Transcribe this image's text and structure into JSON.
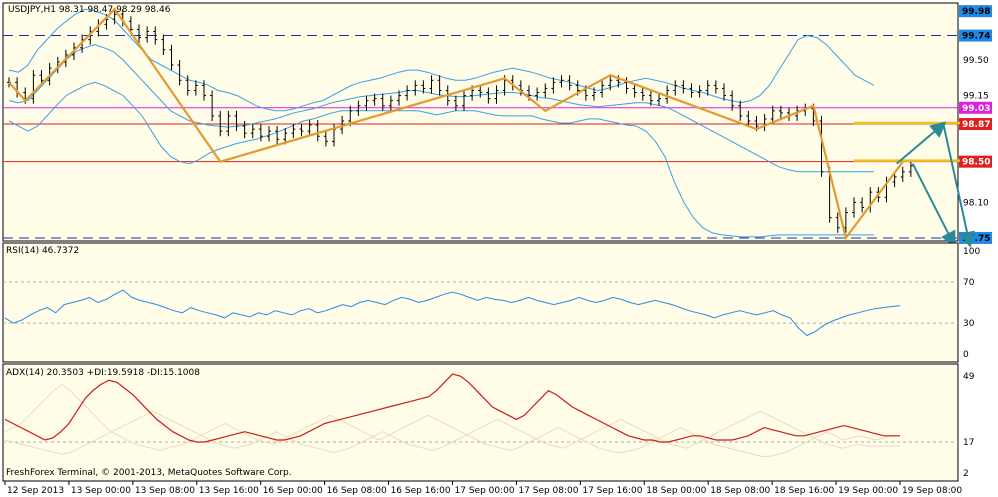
{
  "colors": {
    "background": "#fffde8",
    "frame": "#000000",
    "bollinger": "#3aa0e6",
    "zigzag": "#e39a2e",
    "price_bars": "#000000",
    "support_dash": "#1e2ea8",
    "resistance": "#e02020",
    "magenta": "#e020e0",
    "forecast_arrow": "#2a8a9a",
    "target_zone": "#f0c020",
    "rsi": "#2a8ae6",
    "adx": "#cc1a1a",
    "di_lines": "#e8dcc0"
  },
  "chart_data": [
    {
      "type": "line",
      "panel": "price",
      "title": "USDJPY,H1  98.31 98.47 98.29 98.46",
      "y_ticks": [
        "99.98",
        "99.74",
        "99.50",
        "99.15",
        "99.03",
        "98.87",
        "98.50",
        "98.10",
        "97.75"
      ],
      "ylim": [
        97.72,
        100.06
      ],
      "x_ticks": [
        "12 Sep 2013",
        "13 Sep 00:00",
        "13 Sep 08:00",
        "13 Sep 16:00",
        "16 Sep 00:00",
        "16 Sep 08:00",
        "16 Sep 16:00",
        "17 Sep 00:00",
        "17 Sep 08:00",
        "17 Sep 16:00",
        "18 Sep 00:00",
        "18 Sep 08:00",
        "18 Sep 16:00",
        "19 Sep 00:00",
        "19 Sep 08:00"
      ],
      "levels": [
        {
          "value": 99.98,
          "label": "99.98",
          "style": "axis-tag"
        },
        {
          "value": 99.74,
          "label": "99.74",
          "style": "dashed"
        },
        {
          "value": 99.03,
          "label": "99.03",
          "style": "magenta"
        },
        {
          "value": 98.87,
          "label": "98.87",
          "style": "red"
        },
        {
          "value": 98.5,
          "label": "98.50",
          "style": "red"
        },
        {
          "value": 97.75,
          "label": "97.75",
          "style": "dashed"
        }
      ],
      "zigzag": [
        [
          0,
          99.28
        ],
        [
          2,
          99.1
        ],
        [
          13,
          100.0
        ],
        [
          26,
          98.5
        ],
        [
          61,
          99.32
        ],
        [
          66,
          99.0
        ],
        [
          74,
          99.35
        ],
        [
          92,
          98.82
        ],
        [
          99,
          99.05
        ],
        [
          103,
          97.75
        ],
        [
          110,
          98.5
        ]
      ],
      "forecast": {
        "start": [
          110,
          98.5
        ],
        "peak": [
          115,
          98.87
        ],
        "end": [
          117,
          97.75
        ]
      },
      "bars_close": [
        99.28,
        99.18,
        99.12,
        99.35,
        99.3,
        99.42,
        99.48,
        99.55,
        99.62,
        99.7,
        99.78,
        99.85,
        99.9,
        99.95,
        99.88,
        99.8,
        99.72,
        99.78,
        99.7,
        99.6,
        99.45,
        99.3,
        99.2,
        99.25,
        99.15,
        98.95,
        98.8,
        98.95,
        98.85,
        98.78,
        98.82,
        98.75,
        98.8,
        98.72,
        98.78,
        98.82,
        98.8,
        98.86,
        98.75,
        98.7,
        98.82,
        98.9,
        99.0,
        99.05,
        99.1,
        99.12,
        99.05,
        99.1,
        99.15,
        99.2,
        99.25,
        99.22,
        99.3,
        99.2,
        99.1,
        99.05,
        99.15,
        99.2,
        99.18,
        99.12,
        99.2,
        99.3,
        99.25,
        99.2,
        99.15,
        99.18,
        99.22,
        99.28,
        99.3,
        99.25,
        99.2,
        99.15,
        99.18,
        99.25,
        99.3,
        99.28,
        99.22,
        99.18,
        99.15,
        99.1,
        99.12,
        99.2,
        99.25,
        99.22,
        99.18,
        99.2,
        99.25,
        99.22,
        99.15,
        99.05,
        98.95,
        98.9,
        98.85,
        98.92,
        99.0,
        98.98,
        98.95,
        99.0,
        99.02,
        98.9,
        98.4,
        97.95,
        97.85,
        98.0,
        98.1,
        98.05,
        98.2,
        98.15,
        98.3,
        98.35,
        98.4,
        98.46
      ],
      "bb_upper": [
        99.4,
        99.38,
        99.45,
        99.6,
        99.7,
        99.8,
        99.88,
        99.95,
        100.0,
        99.98,
        99.95,
        99.9,
        99.8,
        99.7,
        99.6,
        99.5,
        99.45,
        99.4,
        99.35,
        99.3,
        99.28,
        99.25,
        99.2,
        99.18,
        99.15,
        99.1,
        99.05,
        99.02,
        99.0,
        99.0,
        99.02,
        99.05,
        99.08,
        99.1,
        99.15,
        99.2,
        99.25,
        99.28,
        99.3,
        99.32,
        99.35,
        99.38,
        99.4,
        99.4,
        99.38,
        99.35,
        99.32,
        99.3,
        99.3,
        99.32,
        99.35,
        99.38,
        99.4,
        99.42,
        99.4,
        99.38,
        99.35,
        99.32,
        99.3,
        99.28,
        99.25,
        99.22,
        99.2,
        99.22,
        99.25,
        99.28,
        99.3,
        99.32,
        99.3,
        99.28,
        99.25,
        99.22,
        99.2,
        99.18,
        99.15,
        99.12,
        99.1,
        99.08,
        99.1,
        99.15,
        99.25,
        99.4,
        99.55,
        99.7,
        99.74,
        99.72,
        99.65,
        99.55,
        99.45,
        99.35,
        99.3,
        99.25
      ],
      "bb_middle": [
        99.1,
        99.08,
        99.1,
        99.2,
        99.3,
        99.4,
        99.5,
        99.58,
        99.62,
        99.65,
        99.62,
        99.58,
        99.5,
        99.4,
        99.3,
        99.2,
        99.1,
        99.0,
        98.95,
        98.9,
        98.88,
        98.86,
        98.85,
        98.84,
        98.85,
        98.86,
        98.88,
        98.9,
        98.92,
        98.95,
        98.98,
        99.0,
        99.02,
        99.05,
        99.08,
        99.1,
        99.12,
        99.14,
        99.15,
        99.16,
        99.17,
        99.18,
        99.2,
        99.2,
        99.18,
        99.16,
        99.15,
        99.14,
        99.14,
        99.15,
        99.16,
        99.17,
        99.18,
        99.18,
        99.17,
        99.15,
        99.13,
        99.12,
        99.1,
        99.08,
        99.06,
        99.05,
        99.04,
        99.05,
        99.06,
        99.07,
        99.08,
        99.08,
        99.06,
        99.04,
        99.0,
        98.95,
        98.9,
        98.85,
        98.8,
        98.75,
        98.7,
        98.65,
        98.6,
        98.55,
        98.5,
        98.45,
        98.42,
        98.4,
        98.4,
        98.4,
        98.4,
        98.4,
        98.4,
        98.4,
        98.4,
        98.4
      ],
      "bb_lower": [
        98.9,
        98.85,
        98.8,
        98.85,
        98.95,
        99.05,
        99.15,
        99.2,
        99.25,
        99.28,
        99.25,
        99.2,
        99.15,
        99.05,
        98.95,
        98.8,
        98.65,
        98.55,
        98.5,
        98.48,
        98.52,
        98.58,
        98.62,
        98.65,
        98.68,
        98.7,
        98.72,
        98.75,
        98.78,
        98.82,
        98.86,
        98.9,
        98.92,
        98.95,
        98.98,
        99.0,
        99.0,
        99.0,
        99.0,
        99.0,
        99.0,
        99.0,
        99.0,
        99.0,
        98.98,
        98.96,
        98.98,
        99.0,
        99.0,
        99.0,
        98.98,
        98.96,
        98.95,
        98.95,
        98.95,
        98.95,
        98.92,
        98.9,
        98.88,
        98.88,
        98.9,
        98.92,
        98.92,
        98.9,
        98.88,
        98.86,
        98.85,
        98.8,
        98.7,
        98.55,
        98.3,
        98.1,
        97.95,
        97.85,
        97.8,
        97.78,
        97.77,
        97.76,
        97.76,
        97.76,
        97.77,
        97.78,
        97.78,
        97.78,
        97.78,
        97.78,
        97.78,
        97.78,
        97.78,
        97.78,
        97.78,
        97.78
      ]
    },
    {
      "type": "line",
      "panel": "rsi",
      "title": "RSI(14) 46.7372",
      "y_ticks": [
        "100",
        "70",
        "30",
        "0"
      ],
      "ylim": [
        0,
        100
      ],
      "levels": [
        70,
        30
      ],
      "values": [
        35,
        30,
        33,
        38,
        42,
        45,
        40,
        48,
        50,
        52,
        55,
        50,
        53,
        58,
        62,
        55,
        52,
        50,
        48,
        45,
        42,
        40,
        45,
        42,
        40,
        38,
        35,
        40,
        38,
        36,
        40,
        38,
        42,
        40,
        38,
        42,
        44,
        40,
        42,
        45,
        48,
        46,
        50,
        52,
        50,
        48,
        52,
        55,
        53,
        50,
        52,
        55,
        58,
        60,
        58,
        55,
        52,
        55,
        53,
        52,
        50,
        52,
        55,
        52,
        50,
        48,
        50,
        52,
        55,
        52,
        50,
        52,
        55,
        53,
        50,
        48,
        50,
        52,
        50,
        48,
        45,
        42,
        40,
        38,
        35,
        38,
        40,
        42,
        40,
        38,
        40,
        42,
        38,
        35,
        25,
        18,
        22,
        28,
        32,
        35,
        38,
        40,
        42,
        44,
        45,
        46,
        47
      ]
    },
    {
      "type": "line",
      "panel": "adx",
      "title": "ADX(14) 20.3503 +DI:19.5918 -DI:15.1008",
      "y_ticks": [
        "49",
        "17",
        "2"
      ],
      "ylim": [
        0,
        52
      ],
      "levels": [
        17
      ],
      "adx": [
        28,
        26,
        24,
        22,
        20,
        18,
        19,
        22,
        26,
        32,
        38,
        42,
        45,
        47,
        46,
        43,
        40,
        36,
        32,
        28,
        25,
        22,
        20,
        18,
        17,
        17,
        18,
        19,
        20,
        21,
        22,
        21,
        20,
        19,
        18,
        18,
        19,
        20,
        22,
        24,
        26,
        27,
        28,
        29,
        30,
        31,
        32,
        33,
        34,
        35,
        36,
        37,
        38,
        39,
        42,
        46,
        50,
        49,
        46,
        42,
        38,
        34,
        32,
        30,
        28,
        30,
        34,
        38,
        42,
        40,
        37,
        34,
        32,
        30,
        28,
        26,
        24,
        22,
        20,
        19,
        18,
        18,
        17,
        17,
        18,
        19,
        20,
        20,
        19,
        18,
        18,
        18,
        19,
        20,
        22,
        24,
        23,
        22,
        21,
        20,
        20,
        21,
        22,
        23,
        24,
        25,
        24,
        23,
        22,
        21,
        20,
        20,
        20
      ],
      "plus_di": [
        22,
        24,
        26,
        30,
        34,
        38,
        42,
        45,
        42,
        38,
        34,
        30,
        26,
        22,
        20,
        18,
        16,
        15,
        14,
        13,
        14,
        15,
        16,
        18,
        20,
        22,
        24,
        26,
        24,
        22,
        20,
        18,
        17,
        16,
        18,
        20,
        22,
        24,
        26,
        28,
        30,
        28,
        26,
        24,
        22,
        20,
        18,
        20,
        22,
        24,
        26,
        28,
        30,
        28,
        26,
        24,
        22,
        20,
        18,
        16,
        15,
        14,
        13,
        14,
        16,
        18,
        20,
        22,
        24,
        22,
        20,
        18,
        16,
        14,
        13,
        12,
        12,
        13,
        14,
        16,
        18,
        20,
        22,
        24,
        22,
        20,
        18,
        16,
        15,
        14,
        13,
        12,
        11,
        10,
        10,
        11,
        12,
        14,
        16,
        18,
        20,
        22,
        20,
        18,
        19,
        20,
        19,
        18,
        19,
        20,
        20
      ],
      "minus_di": [
        18,
        17,
        16,
        15,
        14,
        13,
        12,
        11,
        12,
        14,
        16,
        18,
        20,
        22,
        24,
        26,
        28,
        30,
        32,
        30,
        28,
        26,
        24,
        22,
        20,
        18,
        16,
        15,
        14,
        15,
        16,
        18,
        20,
        22,
        20,
        18,
        16,
        15,
        14,
        13,
        12,
        13,
        14,
        16,
        18,
        20,
        22,
        20,
        18,
        16,
        15,
        14,
        13,
        14,
        16,
        18,
        20,
        22,
        24,
        26,
        28,
        26,
        24,
        22,
        20,
        18,
        16,
        15,
        14,
        16,
        18,
        20,
        22,
        24,
        26,
        28,
        26,
        24,
        22,
        20,
        18,
        16,
        15,
        14,
        16,
        18,
        20,
        22,
        24,
        26,
        28,
        30,
        32,
        30,
        28,
        26,
        24,
        22,
        20,
        18,
        16,
        15,
        14,
        15,
        16,
        15,
        15,
        15,
        15,
        15
      ]
    }
  ],
  "footer": {
    "copyright": "FreshForex Terminal, © 2001-2013, MetaQuotes Software Corp."
  }
}
